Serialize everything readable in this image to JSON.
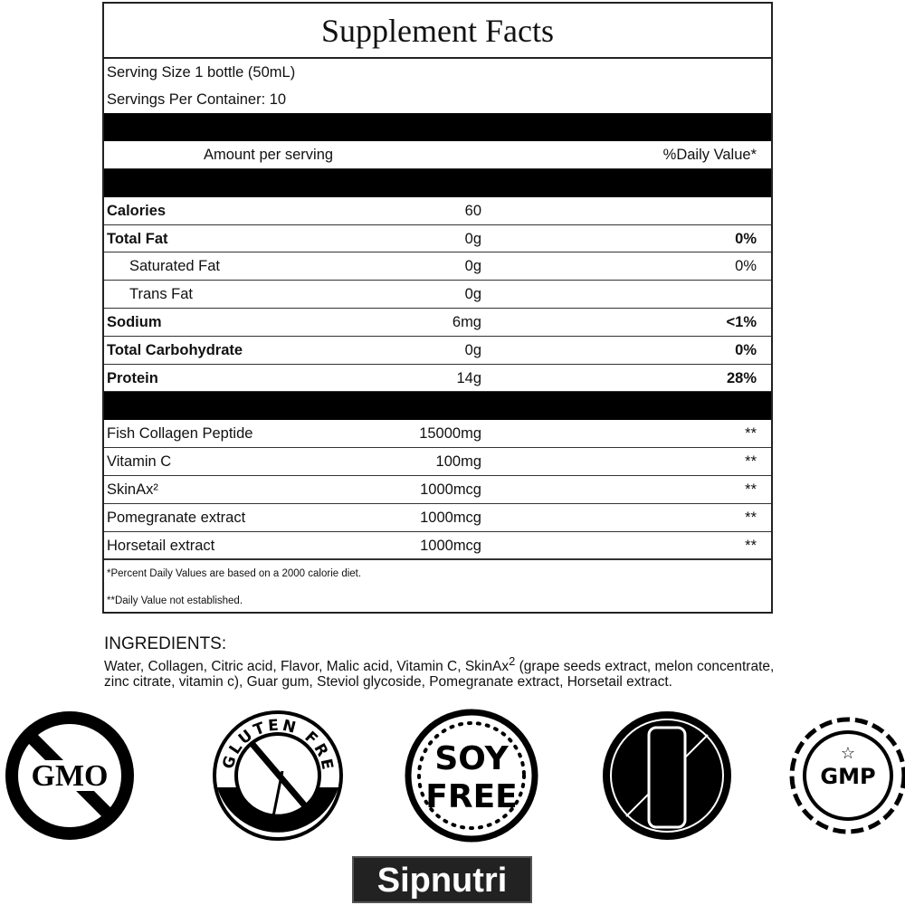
{
  "label": {
    "title": "Supplement Facts",
    "serving_size": "Serving Size 1 bottle (50mL)",
    "servings_per_container": "Servings Per Container: 10",
    "amount_header": "Amount per serving",
    "dv_header": "%Daily Value*",
    "nutrients": [
      {
        "name": "Calories",
        "amount": "60",
        "dv": "",
        "bold": true,
        "indent": false
      },
      {
        "name": "Total Fat",
        "amount": "0g",
        "dv": "0%",
        "bold": true,
        "indent": false
      },
      {
        "name": "Saturated Fat",
        "amount": "0g",
        "dv": "0%",
        "bold": false,
        "indent": true
      },
      {
        "name": "Trans Fat",
        "amount": "0g",
        "dv": "",
        "bold": false,
        "indent": true
      },
      {
        "name": "Sodium",
        "amount": "6mg",
        "dv": "<1%",
        "bold": true,
        "indent": false
      },
      {
        "name": "Total Carbohydrate",
        "amount": "0g",
        "dv": "0%",
        "bold": true,
        "indent": false
      },
      {
        "name": "Protein",
        "amount": "14g",
        "dv": "28%",
        "bold": true,
        "indent": false
      }
    ],
    "ingredients": [
      {
        "name": "Fish Collagen Peptide",
        "amount": "15000mg",
        "dv": "**"
      },
      {
        "name": "Vitamin C",
        "amount": "100mg",
        "dv": "**"
      },
      {
        "name": "SkinAx²",
        "amount": "1000mcg",
        "dv": "**"
      },
      {
        "name": "Pomegranate extract",
        "amount": "1000mcg",
        "dv": "**"
      },
      {
        "name": "Horsetail extract",
        "amount": "1000mcg",
        "dv": "**"
      }
    ],
    "footnote1": "*Percent Daily Values are based on a 2000 calorie diet.",
    "footnote2": "**Daily Value not established."
  },
  "ingredients_section": {
    "heading": "INGREDIENTS:",
    "text_part1": "Water, Collagen, Citric acid, Flavor, Malic acid, Vitamin C, SkinAx",
    "superscript": "2",
    "text_part2": " (grape seeds extract, melon concentrate, zinc citrate, vitamin c), Guar gum, Steviol glycoside, Pomegranate extract, Horsetail extract."
  },
  "badges": [
    {
      "icon": "no-gmo-icon",
      "text": "GMO"
    },
    {
      "icon": "gluten-free-icon",
      "text": "GLUTEN FREE"
    },
    {
      "icon": "soy-free-icon",
      "text": "SOY FREE"
    },
    {
      "icon": "dairy-free-icon",
      "text": ""
    },
    {
      "icon": "gmp-icon",
      "text": "GMP"
    }
  ],
  "brand": "Sipnutri"
}
